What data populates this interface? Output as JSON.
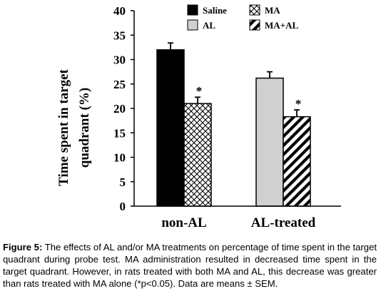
{
  "chart_data": {
    "type": "bar",
    "categories": [
      "non-AL",
      "AL-treated"
    ],
    "series": [
      {
        "name": "Saline",
        "values": [
          32.0,
          null
        ],
        "errors": [
          1.4,
          null
        ],
        "fill": "#000000",
        "pattern": "solid"
      },
      {
        "name": "MA",
        "values": [
          21.0,
          null
        ],
        "errors": [
          1.3,
          null
        ],
        "fill": "#ffffff",
        "pattern": "crosshatch"
      },
      {
        "name": "AL",
        "values": [
          null,
          26.2
        ],
        "errors": [
          null,
          1.3
        ],
        "fill": "#d0d0d0",
        "pattern": "solid"
      },
      {
        "name": "MA+AL",
        "values": [
          null,
          18.3
        ],
        "errors": [
          null,
          1.4
        ],
        "fill": "#ffffff",
        "pattern": "diagonal"
      }
    ],
    "significance": [
      {
        "series": "MA",
        "category": "non-AL",
        "label": "*"
      },
      {
        "series": "MA+AL",
        "category": "AL-treated",
        "label": "*"
      }
    ],
    "yticks": [
      0,
      5,
      10,
      15,
      20,
      25,
      30,
      35,
      40
    ],
    "ylim": [
      0,
      40
    ],
    "ylabel_line1": "Time spent in target",
    "ylabel_line2": "quadrant (%)",
    "xlabel": "",
    "legend_position": "top",
    "grid": false
  },
  "caption": {
    "label": "Figure 5:",
    "text": "The effects of AL and/or MA treatments on percentage of time spent in the target quadrant during probe test. MA administration resulted in decreased time spent in the target quadrant. However, in rats treated with both MA and AL, this decrease was greater than rats treated with MA alone (*p<0.05). Data are means ± SEM."
  }
}
